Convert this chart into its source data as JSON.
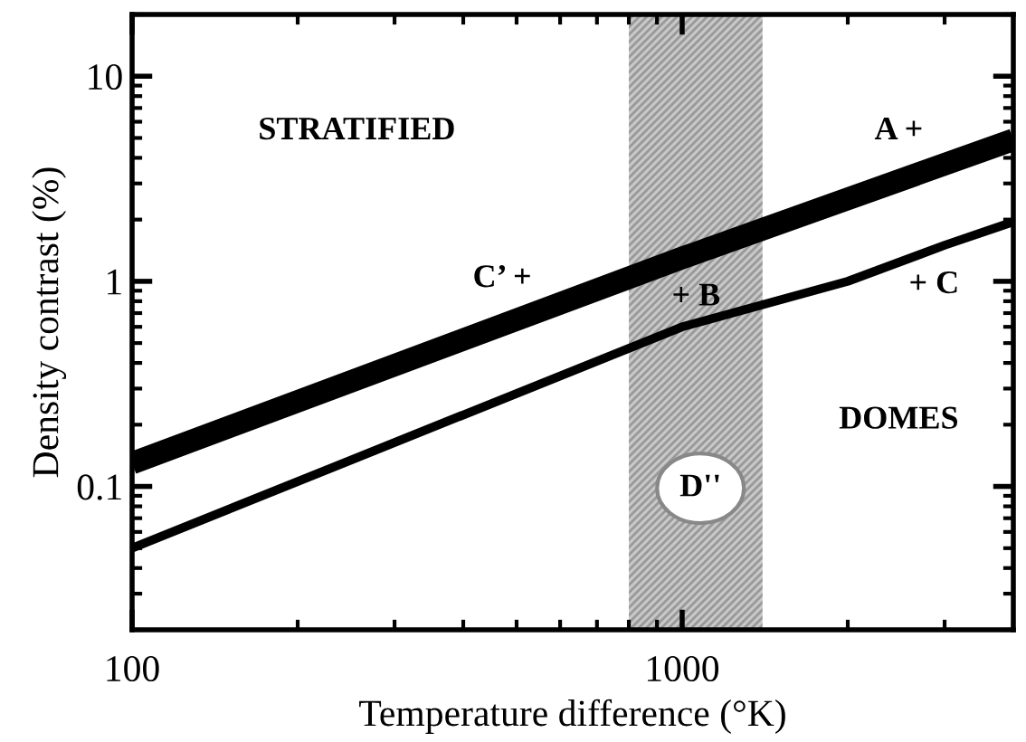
{
  "chart_data": {
    "type": "line",
    "xlabel": "Temperature difference (°K)",
    "ylabel": "Density contrast (%)",
    "log": "xy",
    "xlim": [
      100,
      4000
    ],
    "ylim": [
      0.02,
      20
    ],
    "xticks": [
      100,
      1000
    ],
    "yticks": [
      0.1,
      1,
      10
    ],
    "grid": false,
    "legend": false,
    "marker": "none",
    "line_style": "solid",
    "series": [
      {
        "color": "#000000",
        "x": [
          100,
          1000,
          4000
        ],
        "values": [
          0.13,
          1.3,
          4.9
        ]
      },
      {
        "color": "#000000",
        "x": [
          100,
          1000,
          2000,
          3000,
          4000
        ],
        "values": [
          0.05,
          0.6,
          1.0,
          1.5,
          1.95
        ]
      }
    ],
    "bands": [
      {
        "axis": "x",
        "from": 800,
        "to": 1400,
        "color": "#c8c8c8"
      }
    ],
    "annotations": [
      "STRATIFIED",
      "A +",
      "C’ +",
      "+ B",
      "+ C",
      "DOMES",
      "D''"
    ]
  }
}
